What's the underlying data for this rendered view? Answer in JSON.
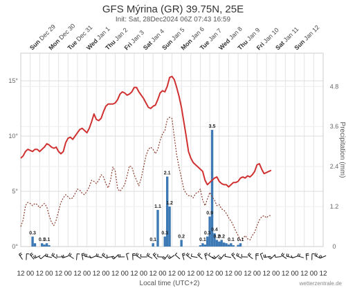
{
  "chart_data": {
    "type": "line",
    "title": "GFS Mýrina (GR) 39.75N, 25E",
    "subtitle": "Init: Sat, 28Dec2024 06Z 07:43 16:59",
    "days": [
      {
        "name": "Sun",
        "date": "Dec 29"
      },
      {
        "name": "Mon",
        "date": "Dec 30"
      },
      {
        "name": "Tue",
        "date": "Dec 31"
      },
      {
        "name": "Wed",
        "date": "Jan 1"
      },
      {
        "name": "Thu",
        "date": "Jan 2"
      },
      {
        "name": "Fri",
        "date": "Jan 3"
      },
      {
        "name": "Sat",
        "date": "Jan 4"
      },
      {
        "name": "Sun",
        "date": "Jan 5"
      },
      {
        "name": "Mon",
        "date": "Jan 6"
      },
      {
        "name": "Tue",
        "date": "Jan 7"
      },
      {
        "name": "Wed",
        "date": "Jan 8"
      },
      {
        "name": "Thu",
        "date": "Jan 9"
      },
      {
        "name": "Fri",
        "date": "Jan 10"
      },
      {
        "name": "Sat",
        "date": "Jan 11"
      },
      {
        "name": "Sun",
        "date": "Jan 12"
      }
    ],
    "x_hours": [
      0,
      384
    ],
    "x_tick_hours": [
      0,
      12,
      24,
      36,
      48,
      60,
      72,
      84,
      96,
      108,
      120,
      132,
      144,
      156,
      168,
      180,
      192,
      204,
      216,
      228,
      240,
      252,
      264,
      276,
      288,
      300,
      312,
      324,
      336,
      348,
      360,
      372,
      384
    ],
    "x_tick_labels": [
      "12",
      "00",
      "12",
      "00",
      "12",
      "00",
      "12",
      "00",
      "12",
      "00",
      "12",
      "00",
      "12",
      "00",
      "12",
      "00",
      "12",
      "00",
      "12",
      "00",
      "12",
      "00",
      "12",
      "00",
      "12",
      "00",
      "12",
      "00",
      "12",
      "00",
      "12",
      "00",
      "12"
    ],
    "xlabel": "Local time (UTC+2)",
    "y_left": {
      "ylim": [
        0,
        17.5
      ],
      "ticks": [
        0,
        5,
        10,
        15
      ],
      "tick_labels": [
        "0°",
        "5°",
        "10°",
        "15°"
      ]
    },
    "y_right": {
      "label": "Precipitation (mm)",
      "ylim": [
        0,
        5.8
      ],
      "ticks": [
        0,
        1.2,
        2.4,
        3.6,
        4.8
      ],
      "tick_labels": [
        "0",
        "1.2",
        "2.4",
        "3.6",
        "4.8"
      ]
    },
    "grid": true,
    "series": [
      {
        "type": "line",
        "color": "#d03030",
        "style": "solid",
        "points": [
          [
            0,
            8.0
          ],
          [
            3,
            8.2
          ],
          [
            6,
            8.6
          ],
          [
            9,
            8.8
          ],
          [
            12,
            8.7
          ],
          [
            15,
            8.6
          ],
          [
            18,
            8.8
          ],
          [
            21,
            8.8
          ],
          [
            24,
            8.6
          ],
          [
            27,
            8.8
          ],
          [
            30,
            9.0
          ],
          [
            33,
            9.3
          ],
          [
            36,
            9.2
          ],
          [
            39,
            9.0
          ],
          [
            42,
            8.9
          ],
          [
            45,
            9.0
          ],
          [
            48,
            8.6
          ],
          [
            51,
            8.4
          ],
          [
            54,
            8.6
          ],
          [
            57,
            9.4
          ],
          [
            60,
            9.8
          ],
          [
            63,
            9.9
          ],
          [
            66,
            9.7
          ],
          [
            69,
            10.0
          ],
          [
            72,
            10.3
          ],
          [
            75,
            10.6
          ],
          [
            78,
            10.7
          ],
          [
            81,
            10.5
          ],
          [
            84,
            10.3
          ],
          [
            87,
            10.7
          ],
          [
            90,
            11.3
          ],
          [
            93,
            12.0
          ],
          [
            96,
            11.5
          ],
          [
            99,
            11.4
          ],
          [
            102,
            11.6
          ],
          [
            105,
            12.2
          ],
          [
            108,
            12.7
          ],
          [
            111,
            12.9
          ],
          [
            114,
            12.9
          ],
          [
            117,
            12.9
          ],
          [
            120,
            13.0
          ],
          [
            123,
            13.3
          ],
          [
            126,
            13.8
          ],
          [
            129,
            14.0
          ],
          [
            132,
            13.9
          ],
          [
            135,
            13.7
          ],
          [
            138,
            13.8
          ],
          [
            141,
            14.0
          ],
          [
            144,
            14.4
          ],
          [
            147,
            14.4
          ],
          [
            150,
            14.0
          ],
          [
            153,
            13.7
          ],
          [
            156,
            13.4
          ],
          [
            159,
            13.0
          ],
          [
            162,
            12.6
          ],
          [
            165,
            12.5
          ],
          [
            168,
            12.7
          ],
          [
            171,
            12.8
          ],
          [
            174,
            13.3
          ],
          [
            177,
            13.9
          ],
          [
            180,
            14.1
          ],
          [
            183,
            14.0
          ],
          [
            186,
            14.5
          ],
          [
            189,
            15.3
          ],
          [
            192,
            15.4
          ],
          [
            195,
            15.1
          ],
          [
            198,
            14.4
          ],
          [
            201,
            13.6
          ],
          [
            204,
            12.6
          ],
          [
            207,
            11.3
          ],
          [
            210,
            10.0
          ],
          [
            213,
            8.6
          ],
          [
            216,
            8.0
          ],
          [
            219,
            7.6
          ],
          [
            222,
            7.4
          ],
          [
            225,
            7.2
          ],
          [
            228,
            7.0
          ],
          [
            231,
            6.8
          ],
          [
            234,
            6.0
          ],
          [
            237,
            5.6
          ],
          [
            240,
            5.8
          ],
          [
            243,
            6.0
          ],
          [
            246,
            6.2
          ],
          [
            249,
            6.3
          ],
          [
            252,
            5.9
          ],
          [
            255,
            5.7
          ],
          [
            258,
            5.6
          ],
          [
            261,
            5.6
          ],
          [
            264,
            5.4
          ],
          [
            267,
            5.6
          ],
          [
            270,
            5.8
          ],
          [
            273,
            5.8
          ],
          [
            276,
            5.9
          ],
          [
            279,
            6.2
          ],
          [
            282,
            6.3
          ],
          [
            285,
            6.2
          ],
          [
            288,
            6.4
          ],
          [
            291,
            6.3
          ],
          [
            294,
            6.5
          ],
          [
            297,
            6.8
          ],
          [
            300,
            7.4
          ],
          [
            303,
            7.5
          ],
          [
            306,
            7.0
          ],
          [
            309,
            6.6
          ],
          [
            312,
            6.7
          ],
          [
            315,
            6.8
          ],
          [
            318,
            6.9
          ]
        ]
      },
      {
        "type": "line",
        "color": "#8b3a2a",
        "style": "dotted",
        "points": [
          [
            0,
            1.8
          ],
          [
            3,
            2.4
          ],
          [
            6,
            3.7
          ],
          [
            9,
            4.0
          ],
          [
            12,
            3.9
          ],
          [
            15,
            3.7
          ],
          [
            18,
            3.9
          ],
          [
            21,
            3.8
          ],
          [
            24,
            3.5
          ],
          [
            27,
            3.7
          ],
          [
            30,
            3.9
          ],
          [
            33,
            3.6
          ],
          [
            36,
            2.8
          ],
          [
            39,
            2.2
          ],
          [
            42,
            1.9
          ],
          [
            45,
            2.4
          ],
          [
            48,
            3.2
          ],
          [
            51,
            4.0
          ],
          [
            54,
            4.4
          ],
          [
            57,
            4.7
          ],
          [
            60,
            4.5
          ],
          [
            63,
            4.3
          ],
          [
            66,
            4.4
          ],
          [
            69,
            4.8
          ],
          [
            72,
            5.2
          ],
          [
            75,
            5.1
          ],
          [
            78,
            4.8
          ],
          [
            81,
            4.7
          ],
          [
            84,
            5.0
          ],
          [
            87,
            5.4
          ],
          [
            90,
            6.0
          ],
          [
            93,
            5.9
          ],
          [
            96,
            5.7
          ],
          [
            99,
            6.0
          ],
          [
            102,
            6.5
          ],
          [
            105,
            6.3
          ],
          [
            108,
            5.7
          ],
          [
            111,
            5.3
          ],
          [
            114,
            6.0
          ],
          [
            117,
            7.2
          ],
          [
            120,
            6.8
          ],
          [
            123,
            5.2
          ],
          [
            126,
            5.0
          ],
          [
            129,
            5.3
          ],
          [
            132,
            5.6
          ],
          [
            135,
            6.4
          ],
          [
            138,
            7.3
          ],
          [
            141,
            7.2
          ],
          [
            144,
            6.5
          ],
          [
            147,
            6.0
          ],
          [
            150,
            5.5
          ],
          [
            153,
            6.2
          ],
          [
            156,
            7.2
          ],
          [
            159,
            8.2
          ],
          [
            162,
            8.8
          ],
          [
            165,
            9.0
          ],
          [
            168,
            8.8
          ],
          [
            171,
            8.4
          ],
          [
            174,
            8.8
          ],
          [
            177,
            9.6
          ],
          [
            180,
            10.2
          ],
          [
            183,
            10.5
          ],
          [
            186,
            11.5
          ],
          [
            189,
            11.7
          ],
          [
            192,
            11.6
          ],
          [
            195,
            9.9
          ],
          [
            198,
            8.3
          ],
          [
            201,
            7.2
          ],
          [
            204,
            6.2
          ],
          [
            207,
            5.2
          ],
          [
            210,
            4.8
          ],
          [
            213,
            4.6
          ],
          [
            216,
            4.6
          ],
          [
            219,
            4.4
          ],
          [
            222,
            4.8
          ],
          [
            225,
            4.9
          ],
          [
            228,
            5.2
          ],
          [
            231,
            4.2
          ],
          [
            234,
            3.7
          ],
          [
            237,
            4.3
          ],
          [
            240,
            4.9
          ],
          [
            243,
            4.5
          ],
          [
            246,
            4.2
          ],
          [
            249,
            3.7
          ],
          [
            252,
            3.8
          ],
          [
            255,
            3.4
          ],
          [
            258,
            3.3
          ],
          [
            261,
            3.0
          ],
          [
            264,
            2.6
          ],
          [
            267,
            2.3
          ],
          [
            270,
            1.9
          ],
          [
            273,
            1.4
          ],
          [
            276,
            1.0
          ],
          [
            279,
            0.6
          ],
          [
            282,
            0.7
          ],
          [
            285,
            1.0
          ],
          [
            288,
            0.7
          ],
          [
            291,
            0.6
          ],
          [
            294,
            1.0
          ],
          [
            297,
            1.3
          ],
          [
            300,
            1.9
          ],
          [
            303,
            2.4
          ],
          [
            306,
            2.7
          ],
          [
            309,
            2.8
          ],
          [
            312,
            2.6
          ],
          [
            315,
            2.8
          ],
          [
            318,
            2.8
          ]
        ]
      }
    ],
    "precipitation_bars": [
      {
        "hour": 15,
        "value": 0.3,
        "label": "0.3"
      },
      {
        "hour": 18,
        "value": 0.1,
        "label": ""
      },
      {
        "hour": 27,
        "value": 0.1,
        "label": "0.1"
      },
      {
        "hour": 30,
        "value": 0.06,
        "label": ""
      },
      {
        "hour": 33,
        "value": 0.1,
        "label": "0.1"
      },
      {
        "hour": 36,
        "value": 0.04,
        "label": ""
      },
      {
        "hour": 168,
        "value": 0.1,
        "label": "0.1"
      },
      {
        "hour": 174,
        "value": 1.1,
        "label": "1.1"
      },
      {
        "hour": 183,
        "value": 0.3,
        "label": "0.3"
      },
      {
        "hour": 186,
        "value": 2.1,
        "label": "2.1"
      },
      {
        "hour": 189,
        "value": 1.2,
        "label": "1.2"
      },
      {
        "hour": 204,
        "value": 0.2,
        "label": "0.2"
      },
      {
        "hour": 228,
        "value": 0.04,
        "label": ""
      },
      {
        "hour": 231,
        "value": 0.1,
        "label": "0.1"
      },
      {
        "hour": 234,
        "value": 0.06,
        "label": ""
      },
      {
        "hour": 237,
        "value": 0.3,
        "label": "0.3"
      },
      {
        "hour": 240,
        "value": 0.9,
        "label": "0.9"
      },
      {
        "hour": 243,
        "value": 3.5,
        "label": "3.5"
      },
      {
        "hour": 246,
        "value": 0.4,
        "label": "0.4"
      },
      {
        "hour": 249,
        "value": 0.2,
        "label": "0.2"
      },
      {
        "hour": 252,
        "value": 0.15,
        "label": ""
      },
      {
        "hour": 255,
        "value": 0.2,
        "label": "0.2"
      },
      {
        "hour": 258,
        "value": 0.12,
        "label": ""
      },
      {
        "hour": 261,
        "value": 0.1,
        "label": ""
      },
      {
        "hour": 264,
        "value": 0.06,
        "label": ""
      },
      {
        "hour": 267,
        "value": 0.1,
        "label": "0.1"
      },
      {
        "hour": 270,
        "value": 0.04,
        "label": ""
      },
      {
        "hour": 276,
        "value": 0.05,
        "label": ""
      },
      {
        "hour": 279,
        "value": 0.1,
        "label": "0.1"
      }
    ],
    "bar_color": "#3d7ab5"
  },
  "footer": {
    "credit": "wetterzentrale.de"
  }
}
